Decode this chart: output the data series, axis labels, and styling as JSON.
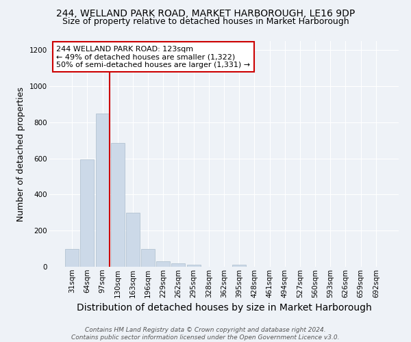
{
  "title_line1": "244, WELLAND PARK ROAD, MARKET HARBOROUGH, LE16 9DP",
  "title_line2": "Size of property relative to detached houses in Market Harborough",
  "xlabel": "Distribution of detached houses by size in Market Harborough",
  "ylabel": "Number of detached properties",
  "bar_color": "#ccd9e8",
  "bar_edge_color": "#aabccc",
  "bar_heights": [
    100,
    595,
    850,
    685,
    300,
    100,
    30,
    20,
    10,
    0,
    0,
    10,
    0,
    0,
    0,
    0,
    0,
    0,
    0,
    0,
    0
  ],
  "x_labels": [
    "31sqm",
    "64sqm",
    "97sqm",
    "130sqm",
    "163sqm",
    "196sqm",
    "229sqm",
    "262sqm",
    "295sqm",
    "328sqm",
    "362sqm",
    "395sqm",
    "428sqm",
    "461sqm",
    "494sqm",
    "527sqm",
    "560sqm",
    "593sqm",
    "626sqm",
    "659sqm",
    "692sqm"
  ],
  "ylim": [
    0,
    1250
  ],
  "yticks": [
    0,
    200,
    400,
    600,
    800,
    1000,
    1200
  ],
  "vline_x_index": 2,
  "vline_color": "#cc0000",
  "annotation_text": "244 WELLAND PARK ROAD: 123sqm\n← 49% of detached houses are smaller (1,322)\n50% of semi-detached houses are larger (1,331) →",
  "annotation_box_color": "#ffffff",
  "annotation_box_edge": "#cc0000",
  "footer_line1": "Contains HM Land Registry data © Crown copyright and database right 2024.",
  "footer_line2": "Contains public sector information licensed under the Open Government Licence v3.0.",
  "background_color": "#eef2f7",
  "grid_color": "#ffffff",
  "title_fontsize": 10,
  "subtitle_fontsize": 9,
  "axis_label_fontsize": 9,
  "tick_fontsize": 7.5,
  "footer_fontsize": 6.5
}
